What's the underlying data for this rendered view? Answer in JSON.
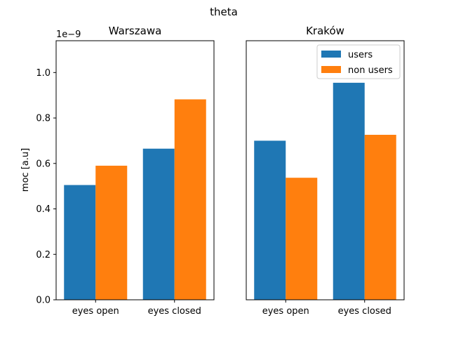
{
  "figure": {
    "suptitle": "theta",
    "ylabel": "moc [a.u]",
    "y_offset_text": "1e−9"
  },
  "colors": {
    "users": "#1f77b4",
    "non_users": "#ff7f0e"
  },
  "chart_data": [
    {
      "type": "bar",
      "title": "Warszawa",
      "categories": [
        "eyes open",
        "eyes closed"
      ],
      "series": [
        {
          "name": "users",
          "values": [
            5.05e-10,
            6.65e-10
          ]
        },
        {
          "name": "non users",
          "values": [
            5.9e-10,
            8.82e-10
          ]
        }
      ],
      "xlabel": "",
      "ylabel": "moc [a.u]",
      "ylim": [
        0,
        1.14e-09
      ],
      "yticks": [
        "0.0",
        "0.2",
        "0.4",
        "0.6",
        "0.8",
        "1.0"
      ],
      "legend": null
    },
    {
      "type": "bar",
      "title": "Kraków",
      "categories": [
        "eyes open",
        "eyes closed"
      ],
      "series": [
        {
          "name": "users",
          "values": [
            7e-10,
            9.55e-10
          ]
        },
        {
          "name": "non users",
          "values": [
            5.37e-10,
            7.26e-10
          ]
        }
      ],
      "xlabel": "",
      "ylabel": "",
      "ylim": [
        0,
        1.14e-09
      ],
      "legend": "top-right"
    }
  ]
}
